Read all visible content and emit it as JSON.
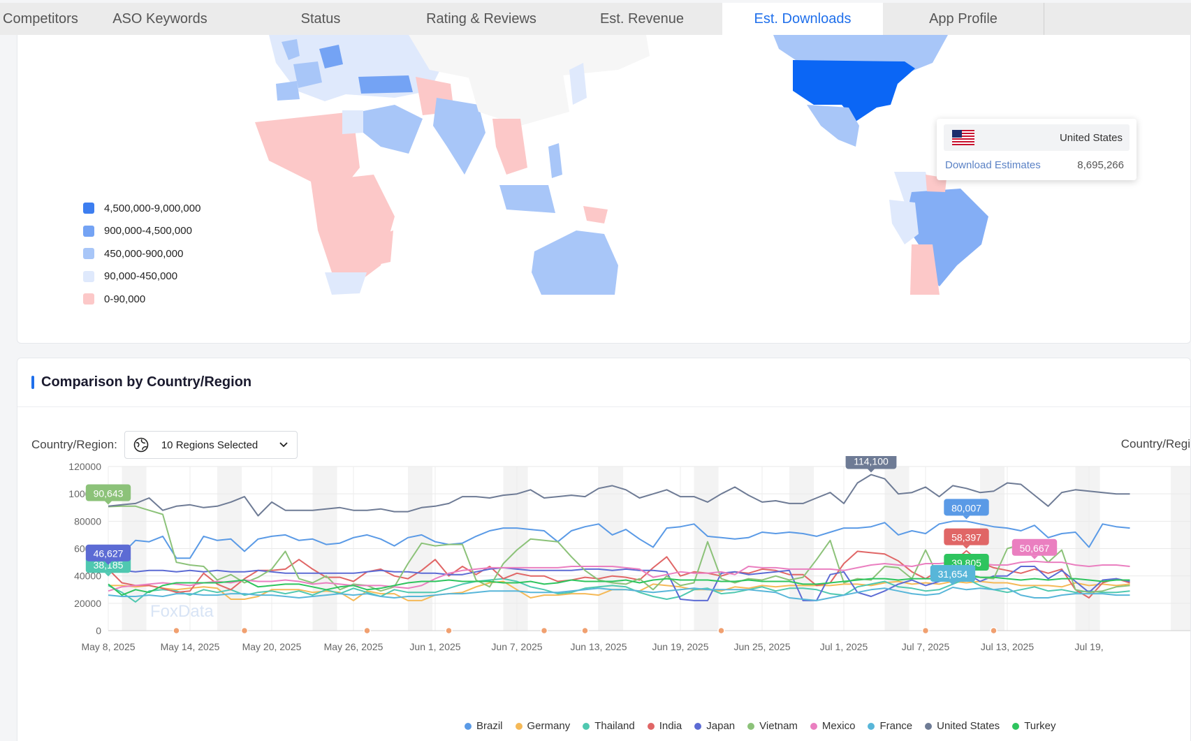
{
  "tabs": [
    {
      "label": "Competitors",
      "active": false
    },
    {
      "label": "ASO Keywords",
      "active": false
    },
    {
      "label": "Status",
      "active": false
    },
    {
      "label": "Rating & Reviews",
      "active": false
    },
    {
      "label": "Est. Revenue",
      "active": false
    },
    {
      "label": "Est. Downloads",
      "active": true
    },
    {
      "label": "App Profile",
      "active": false
    }
  ],
  "map": {
    "legend": [
      {
        "label": "4,500,000-9,000,000",
        "color": "#3d7ef0"
      },
      {
        "label": "900,000-4,500,000",
        "color": "#74a3f4"
      },
      {
        "label": "450,000-900,000",
        "color": "#a8c6f8"
      },
      {
        "label": "90,000-450,000",
        "color": "#dfe9fc"
      },
      {
        "label": "0-90,000",
        "color": "#fcc8c8"
      }
    ],
    "tooltip": {
      "country": "United States",
      "label": "Download Estimates",
      "value": "8,695,266"
    }
  },
  "comparison": {
    "title": "Comparison by Country/Region",
    "filter_label": "Country/Region:",
    "selected": "10 Regions Selected",
    "right_label": "Country/Regi"
  },
  "chart_data": {
    "type": "line",
    "y_ticks": [
      "0",
      "20000",
      "40000",
      "60000",
      "80000",
      "100000",
      "120000"
    ],
    "ylim": [
      0,
      120000
    ],
    "x_tick_labels": [
      "May 8, 2025",
      "May 14, 2025",
      "May 20, 2025",
      "May 26, 2025",
      "Jun 1, 2025",
      "Jun 7, 2025",
      "Jun 13, 2025",
      "Jun 19, 2025",
      "Jun 25, 2025",
      "Jul 1, 2025",
      "Jul 7, 2025",
      "Jul 13, 2025",
      "Jul 19,"
    ],
    "watermark": "FoxData",
    "series": [
      {
        "name": "Brazil",
        "color": "#5a9ae6",
        "values": [
          61000,
          56000,
          66000,
          65000,
          69000,
          53000,
          53000,
          69000,
          66000,
          67000,
          58000,
          67000,
          69000,
          70000,
          66000,
          67000,
          63000,
          64000,
          68000,
          70000,
          67000,
          62000,
          68000,
          70000,
          65000,
          63000,
          64000,
          69000,
          73000,
          75000,
          75000,
          74000,
          73000,
          65000,
          73000,
          76000,
          78000,
          70000,
          74000,
          67000,
          61000,
          75000,
          76000,
          78000,
          69000,
          68000,
          67000,
          68000,
          72000,
          71000,
          72000,
          71000,
          69000,
          72000,
          75000,
          75000,
          76000,
          79000,
          70000,
          73000,
          71000,
          78000,
          80000,
          80007,
          78000,
          76000,
          75000,
          73000,
          77000,
          68000,
          71000,
          72000,
          61000,
          78000,
          76000,
          75000
        ]
      },
      {
        "name": "Germany",
        "color": "#f5b957",
        "values": [
          33000,
          33000,
          32000,
          33000,
          31000,
          30000,
          31000,
          32000,
          31000,
          23000,
          23000,
          25000,
          30000,
          30000,
          30000,
          28000,
          29000,
          28000,
          22000,
          29000,
          27000,
          27000,
          22000,
          22000,
          26000,
          27000,
          28000,
          32000,
          35000,
          36000,
          30000,
          24000,
          26000,
          26000,
          27000,
          27000,
          26000,
          30000,
          30000,
          29000,
          34000,
          33000,
          32000,
          30000,
          30000,
          29000,
          32000,
          31000,
          33000,
          32000,
          33000,
          33000,
          33000,
          33000,
          34000,
          34000,
          33000,
          35000,
          36000,
          34000,
          35000,
          34000,
          36000,
          35000,
          36000,
          35000,
          35000,
          33000,
          33000,
          33000,
          32000,
          35000,
          33000,
          34000,
          33000,
          34000
        ]
      },
      {
        "name": "Thailand",
        "color": "#4fc8b0",
        "values": [
          33000,
          28000,
          21000,
          29000,
          30000,
          29000,
          26000,
          30000,
          28000,
          30000,
          26000,
          28000,
          29000,
          27000,
          29000,
          26000,
          30000,
          27000,
          31000,
          28000,
          25000,
          30000,
          28000,
          28000,
          28000,
          31000,
          34000,
          36000,
          37000,
          38000,
          36000,
          32000,
          30000,
          27000,
          28000,
          31000,
          32000,
          33000,
          32000,
          28000,
          25000,
          23000,
          25000,
          30000,
          31000,
          27000,
          28000,
          30000,
          32000,
          29000,
          31000,
          31000,
          30000,
          27000,
          26000,
          32000,
          34000,
          36000,
          32000,
          31000,
          29000,
          30000,
          34000,
          38000,
          33000,
          30000,
          28000,
          30000,
          32000,
          29000,
          30000,
          28000,
          29000,
          28000,
          28000,
          29000
        ]
      },
      {
        "name": "India",
        "color": "#e06666",
        "values": [
          45000,
          35000,
          33000,
          33000,
          31000,
          28000,
          29000,
          42000,
          34000,
          30000,
          38000,
          44000,
          44000,
          45000,
          52000,
          45000,
          39000,
          39000,
          36000,
          43000,
          45000,
          40000,
          38000,
          44000,
          52000,
          40000,
          47000,
          41000,
          47000,
          38000,
          42000,
          40000,
          40000,
          36000,
          37000,
          39000,
          38000,
          40000,
          39000,
          37000,
          46000,
          54000,
          40000,
          43000,
          42000,
          40000,
          43000,
          42000,
          45000,
          44000,
          41000,
          41000,
          33000,
          35000,
          49000,
          58000,
          57000,
          56000,
          51000,
          43000,
          38000,
          44000,
          50000,
          58397,
          50000,
          46000,
          44000,
          42000,
          45000,
          42000,
          45000,
          30000,
          24000,
          35000,
          38000,
          35000
        ]
      },
      {
        "name": "Japan",
        "color": "#5c6bd4",
        "values": [
          44000,
          44000,
          43000,
          44000,
          44000,
          43000,
          44000,
          43000,
          44000,
          43000,
          43000,
          44000,
          43000,
          42000,
          42000,
          42000,
          42000,
          42000,
          42000,
          43000,
          44000,
          43000,
          43000,
          42000,
          42000,
          41000,
          41000,
          43000,
          45000,
          46000,
          45000,
          44000,
          44000,
          44000,
          44000,
          45000,
          45000,
          44000,
          45000,
          44000,
          44000,
          43000,
          23000,
          22000,
          22000,
          42000,
          43000,
          41000,
          42000,
          43000,
          44000,
          22000,
          22000,
          41000,
          43000,
          28000,
          25000,
          29000,
          34000,
          37000,
          33000,
          36000,
          38000,
          42000,
          36000,
          40000,
          40000,
          47000,
          47000,
          38000,
          44000,
          36000,
          28000,
          37000,
          38000,
          36000
        ]
      },
      {
        "name": "Vietnam",
        "color": "#8cc279",
        "values": [
          90643,
          91000,
          91000,
          88000,
          85000,
          50000,
          48000,
          47000,
          37000,
          41000,
          35000,
          39000,
          45000,
          58000,
          38000,
          35000,
          40000,
          30000,
          34000,
          33000,
          29000,
          32000,
          49000,
          64000,
          62000,
          63000,
          63000,
          37000,
          32000,
          49000,
          59000,
          67000,
          66000,
          65000,
          54000,
          44000,
          37000,
          35000,
          34000,
          38000,
          30000,
          40000,
          33000,
          35000,
          65000,
          38000,
          35000,
          38000,
          37000,
          40000,
          37000,
          39000,
          52000,
          66000,
          35000,
          38000,
          37000,
          47000,
          46000,
          38000,
          59000,
          38000,
          39000,
          42000,
          39000,
          38000,
          60000,
          63000,
          61000,
          50000,
          59000,
          30000,
          28000,
          29000,
          32000,
          33000
        ]
      },
      {
        "name": "Mexico",
        "color": "#ea7fc0",
        "values": [
          29000,
          32000,
          33000,
          34000,
          35000,
          34000,
          33000,
          35000,
          36000,
          35000,
          37000,
          36000,
          36000,
          37000,
          36000,
          34000,
          35000,
          34000,
          33000,
          33000,
          33000,
          32000,
          31000,
          33000,
          38000,
          42000,
          44000,
          45000,
          46000,
          46000,
          46000,
          46000,
          46000,
          46000,
          47000,
          47000,
          47000,
          47000,
          46000,
          45000,
          39000,
          41000,
          43000,
          42000,
          42000,
          43000,
          41000,
          47000,
          46000,
          46000,
          45000,
          45000,
          45000,
          45000,
          44000,
          46000,
          48000,
          49000,
          48000,
          47000,
          49000,
          49000,
          50000,
          49000,
          49000,
          48000,
          48000,
          50000,
          50667,
          50000,
          50000,
          48000,
          47000,
          48000,
          48000,
          47000
        ]
      },
      {
        "name": "France",
        "color": "#58b6d9",
        "values": [
          26000,
          25000,
          25000,
          26000,
          25000,
          27000,
          27000,
          26000,
          26000,
          27000,
          27000,
          26000,
          26000,
          25000,
          24000,
          25000,
          26000,
          27000,
          26000,
          27000,
          25000,
          24000,
          25000,
          25000,
          26000,
          27000,
          27000,
          28000,
          29000,
          29000,
          29000,
          28000,
          28000,
          28000,
          29000,
          30000,
          31000,
          30000,
          30000,
          29000,
          28000,
          29000,
          30000,
          31000,
          30000,
          30000,
          30000,
          30000,
          29000,
          28000,
          24000,
          23000,
          22000,
          24000,
          26000,
          28000,
          30000,
          31000,
          29000,
          27000,
          26000,
          27000,
          31654,
          30000,
          31000,
          30000,
          31000,
          26000,
          24000,
          24000,
          26000,
          27000,
          27000,
          27000,
          26000,
          26000
        ]
      },
      {
        "name": "United States",
        "color": "#6e7b95",
        "values": [
          91000,
          92000,
          93000,
          97000,
          88000,
          91000,
          92000,
          90000,
          91000,
          94000,
          98000,
          84000,
          94000,
          88000,
          88000,
          88000,
          89000,
          90000,
          88000,
          88000,
          89000,
          87000,
          87000,
          90000,
          91000,
          93000,
          98000,
          98000,
          97000,
          99000,
          100000,
          103000,
          97000,
          98000,
          99000,
          98000,
          104000,
          106000,
          103000,
          97000,
          100000,
          103000,
          98000,
          98000,
          94000,
          100000,
          105000,
          99000,
          94000,
          95000,
          93000,
          93000,
          97000,
          101000,
          93000,
          108000,
          114100,
          111000,
          100000,
          101000,
          105000,
          98000,
          106000,
          104000,
          101000,
          102000,
          108000,
          107000,
          99000,
          91000,
          101000,
          103000,
          102000,
          101000,
          100000,
          100000
        ]
      },
      {
        "name": "Turkey",
        "color": "#2ec45e",
        "values": [
          34000,
          26000,
          30000,
          28000,
          33000,
          35000,
          35000,
          35000,
          35000,
          36000,
          37000,
          32000,
          33000,
          34000,
          34000,
          32000,
          30000,
          32000,
          33000,
          30000,
          31000,
          33000,
          35000,
          36000,
          36000,
          37000,
          36000,
          36000,
          36000,
          35000,
          35000,
          36000,
          34000,
          35000,
          37000,
          36000,
          36000,
          36000,
          37000,
          35000,
          37000,
          38000,
          37000,
          37000,
          37000,
          36000,
          36000,
          37000,
          36000,
          36000,
          36000,
          34000,
          34000,
          35000,
          36000,
          37000,
          38000,
          38000,
          37000,
          38000,
          38000,
          38000,
          39000,
          39805,
          39000,
          39000,
          38000,
          37000,
          38000,
          37000,
          38000,
          38000,
          37000,
          36000,
          37000,
          37000
        ]
      }
    ],
    "data_labels": [
      {
        "series": "Vietnam",
        "text": "90,643"
      },
      {
        "series": "United States",
        "text": "114,100"
      },
      {
        "series": "Brazil",
        "text": "80,007"
      },
      {
        "series": "India",
        "text": "58,397"
      },
      {
        "series": "Thailand",
        "text": "38,185"
      },
      {
        "series": "Mexico",
        "text": "50,667"
      },
      {
        "series": "Japan",
        "text": "46,627"
      },
      {
        "series": "Turkey",
        "text": "39,805"
      },
      {
        "series": "France",
        "text": "31,654"
      }
    ]
  }
}
